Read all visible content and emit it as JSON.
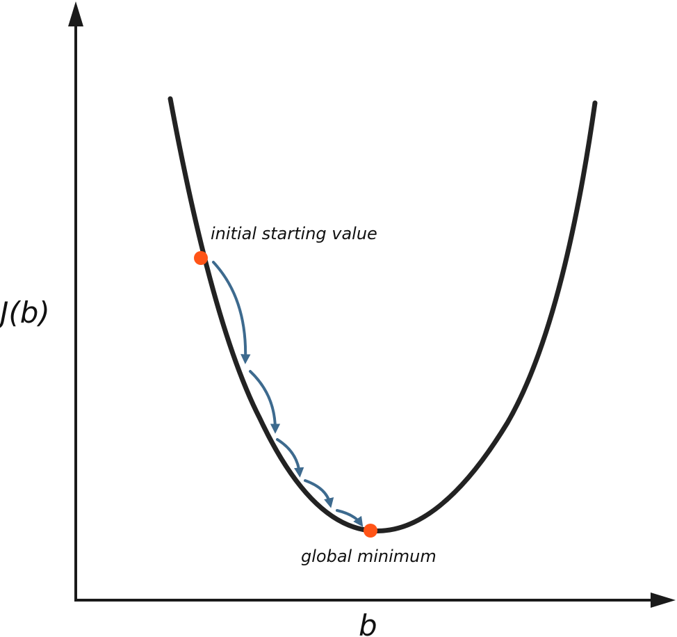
{
  "labels": {
    "y_axis": "J(b)",
    "x_axis": "b",
    "start_point": "initial starting value",
    "minimum_point": "global minimum"
  },
  "colors": {
    "axis": "#1a1a1a",
    "curve": "#222222",
    "step_arrows": "#3d6a8e",
    "points": "#ff5417",
    "text": "#111111"
  },
  "cost_function": {
    "shape": "convex parabola",
    "descent_steps": 5
  }
}
